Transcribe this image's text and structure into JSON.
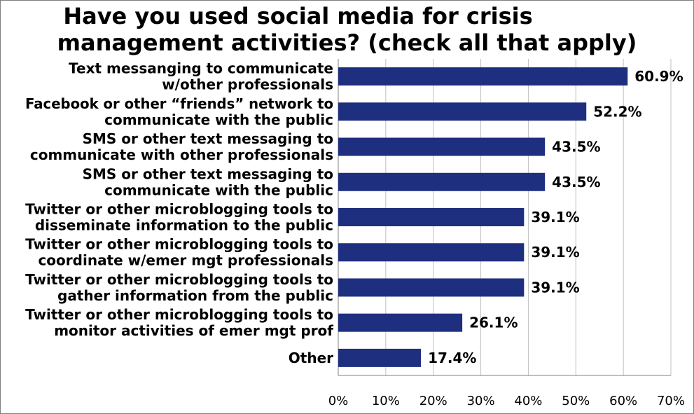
{
  "chart_data": {
    "type": "bar",
    "orientation": "horizontal",
    "title_lines": [
      "Have you used social media for crisis",
      "management activities? (check all that apply)"
    ],
    "categories": [
      [
        "Text messanging to communicate",
        "w/other professionals"
      ],
      [
        "Facebook or other “friends” network to",
        "communicate with the public"
      ],
      [
        "SMS or other text messaging to",
        "communicate with other professionals"
      ],
      [
        "SMS or other text messaging to",
        "communicate with the public"
      ],
      [
        "Twitter or other microblogging tools to",
        "disseminate information to the public"
      ],
      [
        "Twitter or other microblogging tools to",
        "coordinate w/emer mgt professionals"
      ],
      [
        "Twitter or other microblogging tools to",
        "gather information from the public"
      ],
      [
        "Twitter or other microblogging tools to",
        "monitor activities of emer mgt prof"
      ],
      [
        "Other"
      ]
    ],
    "values": [
      60.9,
      52.2,
      43.5,
      43.5,
      39.1,
      39.1,
      39.1,
      26.1,
      17.4
    ],
    "value_labels": [
      "60.9%",
      "52.2%",
      "43.5%",
      "43.5%",
      "39.1%",
      "39.1%",
      "39.1%",
      "26.1%",
      "17.4%"
    ],
    "xlim": [
      0,
      70
    ],
    "xticks": [
      0,
      10,
      20,
      30,
      40,
      50,
      60,
      70
    ],
    "xtick_labels": [
      "0%",
      "10%",
      "20%",
      "30%",
      "40%",
      "50%",
      "60%",
      "70%"
    ],
    "bar_color": "#1f2f7f",
    "grid": "vertical",
    "grid_color": "#bfbfbf"
  }
}
